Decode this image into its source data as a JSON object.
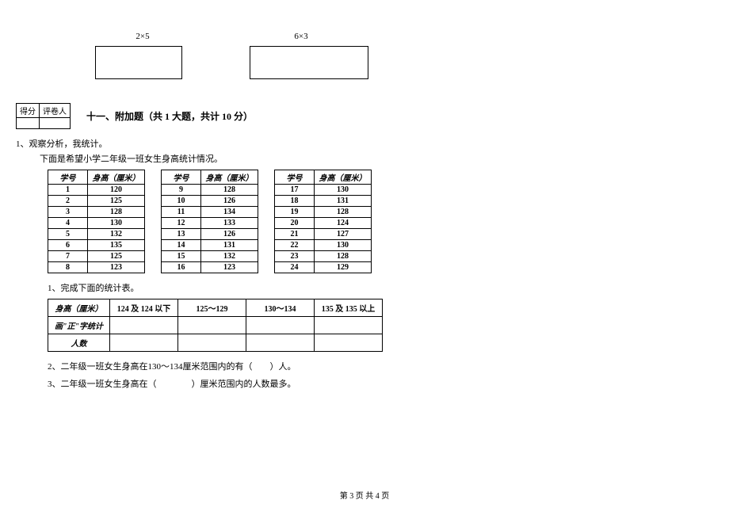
{
  "formulas": {
    "left": "2×5",
    "right": "6×3"
  },
  "scorebox": {
    "col1": "得分",
    "col2": "评卷人"
  },
  "section": {
    "title": "十一、附加题（共 1 大题，共计 10 分）"
  },
  "question": {
    "num": "1、观察分析，我统计。",
    "desc": "下面是希望小学二年级一班女生身高统计情况。"
  },
  "dataHeaders": {
    "id": "学号",
    "height": "身高（厘米）"
  },
  "group1": [
    {
      "id": "1",
      "h": "120"
    },
    {
      "id": "2",
      "h": "125"
    },
    {
      "id": "3",
      "h": "128"
    },
    {
      "id": "4",
      "h": "130"
    },
    {
      "id": "5",
      "h": "132"
    },
    {
      "id": "6",
      "h": "135"
    },
    {
      "id": "7",
      "h": "125"
    },
    {
      "id": "8",
      "h": "123"
    }
  ],
  "group2": [
    {
      "id": "9",
      "h": "128"
    },
    {
      "id": "10",
      "h": "126"
    },
    {
      "id": "11",
      "h": "134"
    },
    {
      "id": "12",
      "h": "133"
    },
    {
      "id": "13",
      "h": "126"
    },
    {
      "id": "14",
      "h": "131"
    },
    {
      "id": "15",
      "h": "132"
    },
    {
      "id": "16",
      "h": "123"
    }
  ],
  "group3": [
    {
      "id": "17",
      "h": "130"
    },
    {
      "id": "18",
      "h": "131"
    },
    {
      "id": "19",
      "h": "128"
    },
    {
      "id": "20",
      "h": "124"
    },
    {
      "id": "21",
      "h": "127"
    },
    {
      "id": "22",
      "h": "130"
    },
    {
      "id": "23",
      "h": "128"
    },
    {
      "id": "24",
      "h": "129"
    }
  ],
  "sub1": "1、完成下面的统计表。",
  "summary": {
    "row1": {
      "label": "身高（厘米）",
      "c1": "124 及 124 以下",
      "c2": "125～129",
      "c3": "130～134",
      "c4": "135 及 135 以上"
    },
    "row2": {
      "label": "画\"正\"字统计",
      "c1": "",
      "c2": "",
      "c3": "",
      "c4": ""
    },
    "row3": {
      "label": "人数",
      "c1": "",
      "c2": "",
      "c3": "",
      "c4": ""
    }
  },
  "sub2": "2、二年级一班女生身高在130～134厘米范围内的有（　　）人。",
  "sub3": "3、二年级一班女生身高在（　　　　）厘米范围内的人数最多。",
  "footer": "第 3 页 共 4 页"
}
